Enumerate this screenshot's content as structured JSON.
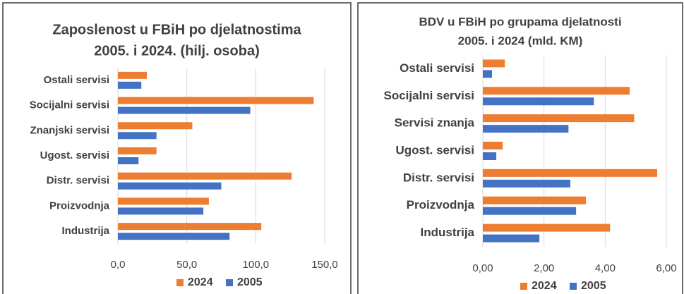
{
  "chart_data": [
    {
      "type": "hbar",
      "title": [
        "Zaposlenost u FBiH po djelatnostima",
        "2005. i 2024. (hilj. osoba)"
      ],
      "categories": [
        "Ostali servisi",
        "Socijalni servisi",
        "Znanjski servisi",
        "Ugost. servisi",
        "Distr. servisi",
        "Proizvodnja",
        "Industrija"
      ],
      "series": [
        {
          "name": "2024",
          "color": "#ed7d31",
          "values": [
            21,
            142,
            54,
            28,
            126,
            66,
            104
          ]
        },
        {
          "name": "2005",
          "color": "#4472c4",
          "values": [
            17,
            96,
            28,
            15,
            75,
            62,
            81
          ]
        }
      ],
      "xlim": [
        0,
        150
      ],
      "xticks": [
        {
          "value": 0,
          "label": "0,0"
        },
        {
          "value": 50,
          "label": "50,0"
        },
        {
          "value": 100,
          "label": "100,0"
        },
        {
          "value": 150,
          "label": "150,0"
        }
      ],
      "grid": true,
      "legend": "bottom"
    },
    {
      "type": "hbar",
      "title": [
        "BDV u FBiH po grupama djelatnosti",
        "2005. i 2024 (mld. KM)"
      ],
      "categories": [
        "Ostali servisi",
        "Socijalni servisi",
        "Servisi znanja",
        "Ugost. servisi",
        "Distr. servisi",
        "Proizvodnja",
        "Industrija"
      ],
      "series": [
        {
          "name": "2024",
          "color": "#ed7d31",
          "values": [
            0.72,
            4.8,
            4.95,
            0.65,
            5.7,
            3.37,
            4.16
          ]
        },
        {
          "name": "2005",
          "color": "#4472c4",
          "values": [
            0.3,
            3.63,
            2.8,
            0.44,
            2.86,
            3.05,
            1.85
          ]
        }
      ],
      "xlim": [
        0,
        6
      ],
      "xticks": [
        {
          "value": 0,
          "label": "0,00"
        },
        {
          "value": 2,
          "label": "2,00"
        },
        {
          "value": 4,
          "label": "4,00"
        },
        {
          "value": 6,
          "label": "6,00"
        }
      ],
      "grid": true,
      "legend": "bottom"
    }
  ]
}
